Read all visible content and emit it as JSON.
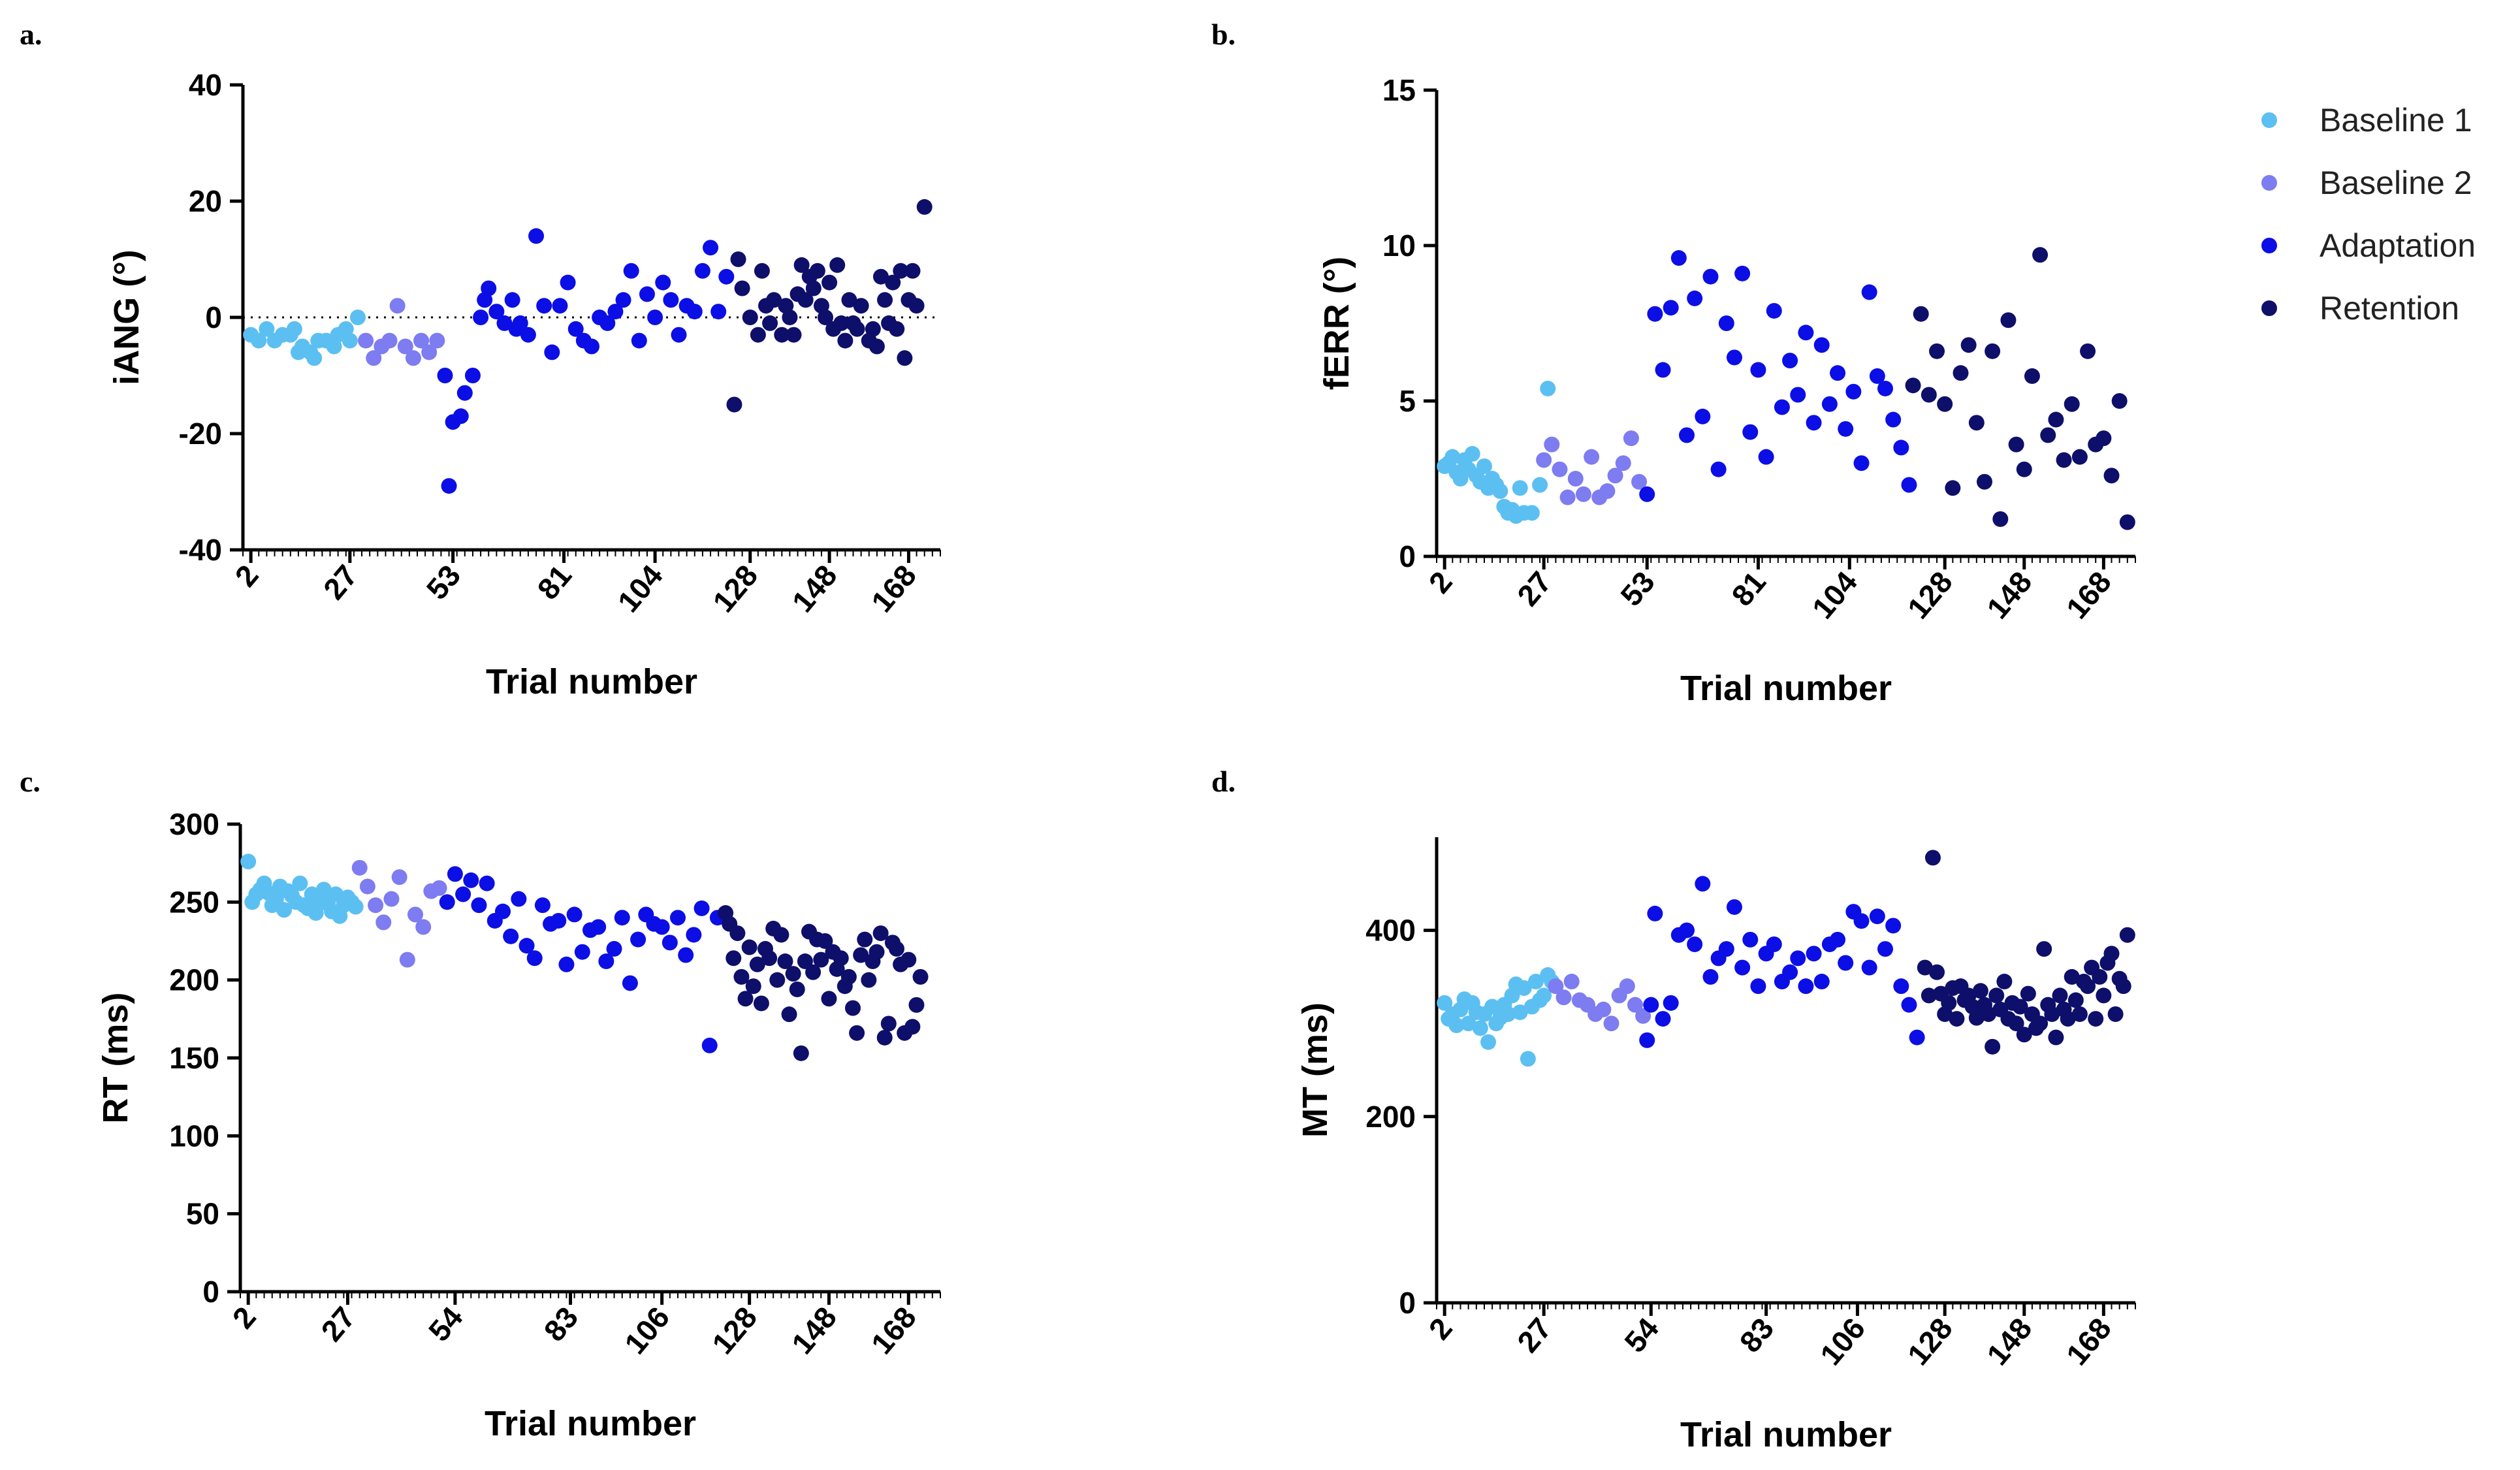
{
  "figure": {
    "legend": [
      {
        "label": "Baseline 1",
        "color": "#5cbff2"
      },
      {
        "label": "Baseline 2",
        "color": "#7d7cf0"
      },
      {
        "label": "Adaptation",
        "color": "#0c0ee6"
      },
      {
        "label": "Retention",
        "color": "#0e0f6a"
      }
    ]
  },
  "chart_data": [
    {
      "panel": "a.",
      "type": "scatter",
      "ylabel": "iANG (°)",
      "xlabel": "Trial number",
      "ylim": [
        -40,
        40
      ],
      "yticks": [
        -40,
        -20,
        0,
        20,
        40
      ],
      "xlim": [
        0,
        176
      ],
      "xticks": [
        2,
        27,
        53,
        81,
        104,
        128,
        148,
        168
      ],
      "zero_line": true,
      "series": [
        {
          "name": "Baseline 1",
          "color": "#5cbff2",
          "x": [
            2,
            4,
            6,
            8,
            10,
            12,
            13,
            14,
            15,
            17,
            18,
            19,
            21,
            23,
            24,
            26,
            27,
            29
          ],
          "y": [
            -3,
            -4,
            -2,
            -4,
            -3,
            -3,
            -2,
            -6,
            -5,
            -6,
            -7,
            -4,
            -4,
            -5,
            -3,
            -2,
            -4,
            0
          ]
        },
        {
          "name": "Baseline 2",
          "color": "#7d7cf0",
          "x": [
            31,
            33,
            35,
            37,
            39,
            41,
            43,
            45,
            47,
            49
          ],
          "y": [
            -4,
            -7,
            -5,
            -4,
            2,
            -5,
            -7,
            -4,
            -6,
            -4
          ]
        },
        {
          "name": "Adaptation",
          "color": "#0c0ee6",
          "x": [
            51,
            52,
            53,
            55,
            56,
            58,
            60,
            61,
            62,
            64,
            66,
            68,
            69,
            70,
            72,
            74,
            76,
            78,
            80,
            82,
            84,
            86,
            88,
            90,
            92,
            94,
            96,
            98,
            100,
            102,
            104,
            106,
            108,
            110,
            112,
            114,
            116,
            118,
            120,
            122
          ],
          "y": [
            -10,
            -29,
            -18,
            -17,
            -13,
            -10,
            0,
            3,
            5,
            1,
            -1,
            3,
            -2,
            -1,
            -3,
            14,
            2,
            -6,
            2,
            6,
            -2,
            -4,
            -5,
            0,
            -1,
            1,
            3,
            8,
            -4,
            4,
            0,
            6,
            3,
            -3,
            2,
            1,
            8,
            12,
            1,
            7
          ]
        },
        {
          "name": "Retention",
          "color": "#0e0f6a",
          "x": [
            124,
            125,
            126,
            128,
            130,
            131,
            132,
            133,
            134,
            136,
            137,
            138,
            139,
            140,
            141,
            142,
            143,
            144,
            145,
            146,
            147,
            148,
            149,
            150,
            151,
            152,
            153,
            154,
            155,
            156,
            158,
            159,
            160,
            161,
            162,
            163,
            164,
            165,
            166,
            167,
            168,
            169,
            170,
            172
          ],
          "y": [
            -15,
            10,
            5,
            0,
            -3,
            8,
            2,
            -1,
            3,
            -3,
            2,
            0,
            -3,
            4,
            9,
            3,
            7,
            5,
            8,
            2,
            0,
            6,
            -2,
            9,
            -1,
            -4,
            3,
            -1,
            -2,
            2,
            -4,
            -2,
            -5,
            7,
            3,
            -1,
            6,
            -2,
            8,
            -7,
            3,
            8,
            2,
            19
          ]
        }
      ]
    },
    {
      "panel": "b.",
      "type": "scatter",
      "ylabel": "fERR (°)",
      "xlabel": "Trial number",
      "ylim": [
        0,
        15
      ],
      "yticks": [
        0,
        5,
        10,
        15
      ],
      "xlim": [
        0,
        176
      ],
      "xticks": [
        2,
        27,
        53,
        81,
        104,
        128,
        148,
        168
      ],
      "series": [
        {
          "name": "Baseline 1",
          "color": "#5cbff2",
          "x": [
            2,
            3,
            4,
            5,
            6,
            7,
            8,
            9,
            10,
            11,
            12,
            13,
            14,
            15,
            16,
            17,
            18,
            19,
            20,
            21,
            22,
            24,
            26,
            28
          ],
          "y": [
            2.9,
            3.0,
            3.2,
            2.7,
            2.5,
            3.1,
            2.8,
            3.3,
            2.6,
            2.4,
            2.9,
            2.2,
            2.5,
            2.3,
            2.1,
            1.6,
            1.4,
            1.5,
            1.3,
            2.2,
            1.4,
            1.4,
            2.3,
            5.4
          ]
        },
        {
          "name": "Baseline 2",
          "color": "#7d7cf0",
          "x": [
            27,
            29,
            31,
            33,
            35,
            37,
            39,
            41,
            43,
            45,
            47,
            49,
            51
          ],
          "y": [
            3.1,
            3.6,
            2.8,
            1.9,
            2.5,
            2.0,
            3.2,
            1.9,
            2.1,
            2.6,
            3.0,
            3.8,
            2.4
          ]
        },
        {
          "name": "Adaptation",
          "color": "#0c0ee6",
          "x": [
            53,
            55,
            57,
            59,
            61,
            63,
            65,
            67,
            69,
            71,
            73,
            75,
            77,
            79,
            81,
            83,
            85,
            87,
            89,
            91,
            93,
            95,
            97,
            99,
            101,
            103,
            105,
            107,
            109,
            111,
            113,
            115,
            117,
            119
          ],
          "y": [
            2.0,
            7.8,
            6.0,
            8.0,
            9.6,
            3.9,
            8.3,
            4.5,
            9.0,
            2.8,
            7.5,
            6.4,
            9.1,
            4.0,
            6.0,
            3.2,
            7.9,
            4.8,
            6.3,
            5.2,
            7.2,
            4.3,
            6.8,
            4.9,
            5.9,
            4.1,
            5.3,
            3.0,
            8.5,
            5.8,
            5.4,
            4.4,
            3.5,
            2.3
          ]
        },
        {
          "name": "Retention",
          "color": "#0e0f6a",
          "x": [
            120,
            122,
            124,
            126,
            128,
            130,
            132,
            134,
            136,
            138,
            140,
            142,
            144,
            146,
            148,
            150,
            152,
            154,
            156,
            158,
            160,
            162,
            164,
            166,
            168,
            170,
            172,
            174
          ],
          "y": [
            5.5,
            7.8,
            5.2,
            6.6,
            4.9,
            2.2,
            5.9,
            6.8,
            4.3,
            2.4,
            6.6,
            1.2,
            7.6,
            3.6,
            2.8,
            5.8,
            9.7,
            3.9,
            4.4,
            3.1,
            4.9,
            3.2,
            6.6,
            3.6,
            3.8,
            2.6,
            5.0,
            1.1
          ]
        }
      ]
    },
    {
      "panel": "c.",
      "type": "scatter",
      "ylabel": "RT (ms)",
      "xlabel": "Trial number",
      "ylim": [
        0,
        300
      ],
      "yticks": [
        0,
        50,
        100,
        150,
        200,
        250,
        300
      ],
      "xlim": [
        0,
        176
      ],
      "xticks": [
        2,
        27,
        54,
        83,
        106,
        128,
        148,
        168
      ],
      "series": [
        {
          "name": "Baseline 1",
          "color": "#5cbff2",
          "x": [
            2,
            3,
            4,
            5,
            6,
            7,
            8,
            9,
            10,
            11,
            12,
            13,
            14,
            15,
            16,
            17,
            18,
            19,
            20,
            21,
            22,
            23,
            24,
            25,
            26,
            27,
            28,
            29
          ],
          "y": [
            276,
            250,
            255,
            258,
            262,
            256,
            248,
            252,
            260,
            245,
            257,
            254,
            250,
            262,
            248,
            246,
            255,
            243,
            252,
            258,
            249,
            244,
            255,
            241,
            248,
            253,
            250,
            247
          ]
        },
        {
          "name": "Baseline 2",
          "color": "#7d7cf0",
          "x": [
            30,
            32,
            34,
            36,
            38,
            40,
            42,
            44,
            46,
            48,
            50
          ],
          "y": [
            272,
            260,
            248,
            237,
            252,
            266,
            213,
            242,
            234,
            257,
            259
          ]
        },
        {
          "name": "Adaptation",
          "color": "#0c0ee6",
          "x": [
            52,
            54,
            56,
            58,
            60,
            62,
            64,
            66,
            68,
            70,
            72,
            74,
            76,
            78,
            80,
            82,
            84,
            86,
            88,
            90,
            92,
            94,
            96,
            98,
            100,
            102,
            104,
            106,
            108,
            110,
            112,
            114,
            116,
            118,
            120
          ],
          "y": [
            250,
            268,
            255,
            264,
            248,
            262,
            238,
            244,
            228,
            252,
            222,
            214,
            248,
            236,
            238,
            210,
            242,
            218,
            232,
            234,
            212,
            220,
            240,
            198,
            226,
            242,
            236,
            234,
            224,
            240,
            216,
            229,
            246,
            158,
            240
          ]
        },
        {
          "name": "Retention",
          "color": "#0e0f6a",
          "x": [
            122,
            123,
            124,
            125,
            126,
            127,
            128,
            129,
            130,
            131,
            132,
            133,
            134,
            135,
            136,
            137,
            138,
            139,
            140,
            141,
            142,
            143,
            144,
            145,
            146,
            147,
            148,
            149,
            150,
            151,
            152,
            153,
            154,
            155,
            156,
            157,
            158,
            159,
            160,
            161,
            162,
            163,
            164,
            165,
            166,
            167,
            168,
            169,
            170,
            171
          ],
          "y": [
            243,
            236,
            214,
            230,
            202,
            188,
            221,
            196,
            210,
            185,
            220,
            214,
            233,
            200,
            229,
            212,
            178,
            204,
            194,
            153,
            212,
            231,
            205,
            226,
            213,
            225,
            188,
            218,
            207,
            214,
            196,
            202,
            182,
            166,
            216,
            226,
            200,
            212,
            218,
            230,
            163,
            172,
            224,
            220,
            210,
            166,
            213,
            170,
            184,
            202
          ]
        }
      ]
    },
    {
      "panel": "d.",
      "type": "scatter",
      "ylabel": "MT (ms)",
      "xlabel": "Trial number",
      "ylim": [
        0,
        500
      ],
      "yticks": [
        0,
        200,
        400
      ],
      "xlim": [
        0,
        176
      ],
      "xticks": [
        2,
        27,
        54,
        83,
        106,
        128,
        148,
        168
      ],
      "series": [
        {
          "name": "Baseline 1",
          "color": "#5cbff2",
          "x": [
            2,
            3,
            4,
            5,
            6,
            7,
            8,
            9,
            10,
            11,
            12,
            13,
            14,
            15,
            16,
            17,
            18,
            19,
            20,
            21,
            22,
            23,
            24,
            25,
            26,
            27,
            28,
            29
          ],
          "y": [
            322,
            305,
            310,
            298,
            315,
            326,
            300,
            322,
            312,
            295,
            310,
            280,
            318,
            300,
            306,
            320,
            310,
            330,
            342,
            312,
            338,
            262,
            318,
            345,
            325,
            330,
            352,
            345
          ]
        },
        {
          "name": "Baseline 2",
          "color": "#7d7cf0",
          "x": [
            30,
            32,
            34,
            36,
            38,
            40,
            42,
            44,
            46,
            48,
            50,
            52
          ],
          "y": [
            340,
            328,
            345,
            325,
            320,
            310,
            315,
            300,
            330,
            340,
            320,
            308
          ]
        },
        {
          "name": "Adaptation",
          "color": "#0c0ee6",
          "x": [
            53,
            54,
            55,
            57,
            59,
            61,
            63,
            65,
            67,
            69,
            71,
            73,
            75,
            77,
            79,
            81,
            83,
            85,
            87,
            89,
            91,
            93,
            95,
            97,
            99,
            101,
            103,
            105,
            107,
            109,
            111,
            113,
            115,
            117,
            119,
            121
          ],
          "y": [
            282,
            320,
            418,
            305,
            322,
            395,
            400,
            385,
            450,
            350,
            370,
            380,
            425,
            360,
            390,
            340,
            375,
            385,
            345,
            355,
            370,
            340,
            375,
            345,
            385,
            390,
            365,
            420,
            410,
            360,
            415,
            380,
            405,
            340,
            320,
            285
          ]
        },
        {
          "name": "Retention",
          "color": "#0e0f6a",
          "x": [
            123,
            124,
            125,
            126,
            127,
            128,
            129,
            130,
            131,
            132,
            133,
            134,
            135,
            136,
            137,
            138,
            139,
            140,
            141,
            142,
            143,
            144,
            145,
            146,
            147,
            148,
            149,
            150,
            151,
            152,
            153,
            154,
            155,
            156,
            157,
            158,
            159,
            160,
            161,
            162,
            163,
            164,
            165,
            166,
            167,
            168,
            169,
            170,
            171,
            172,
            173,
            174
          ],
          "y": [
            360,
            330,
            478,
            355,
            332,
            310,
            322,
            338,
            305,
            340,
            325,
            330,
            318,
            306,
            335,
            320,
            310,
            275,
            330,
            315,
            345,
            305,
            322,
            300,
            318,
            288,
            332,
            310,
            295,
            300,
            380,
            320,
            310,
            285,
            330,
            315,
            305,
            350,
            325,
            310,
            345,
            340,
            360,
            305,
            350,
            330,
            365,
            375,
            310,
            348,
            340,
            395
          ]
        }
      ]
    }
  ]
}
